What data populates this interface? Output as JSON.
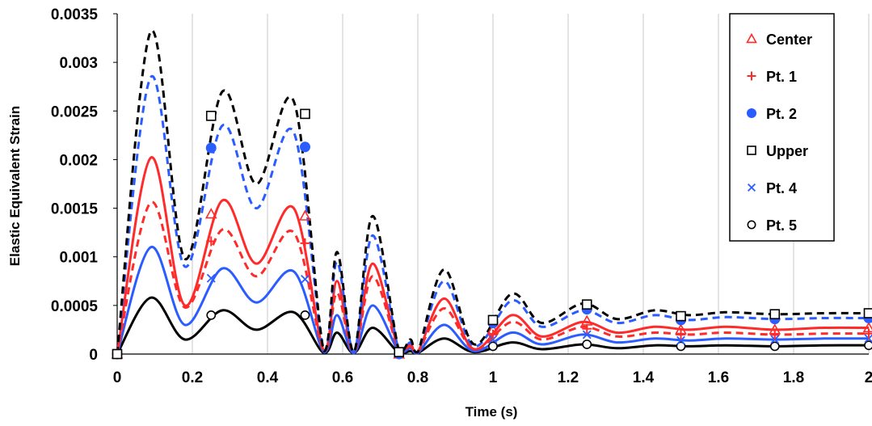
{
  "chart_data": {
    "type": "line",
    "xlabel": "Time (s)",
    "ylabel": "Elastic Equivalent Strain",
    "xlim": [
      0,
      2
    ],
    "ylim": [
      0,
      0.0035
    ],
    "x_ticks": [
      "0",
      "0.2",
      "0.4",
      "0.6",
      "0.8",
      "1",
      "1.2",
      "1.4",
      "1.6",
      "1.8",
      "2"
    ],
    "y_ticks": [
      "0",
      "0.0005",
      "0.001",
      "0.0015",
      "0.002",
      "0.0025",
      "0.003",
      "0.0035"
    ],
    "grid": "vertical",
    "legend_position": "top-right",
    "series": [
      {
        "name": "Center",
        "color": "#ff2a2a",
        "line_style": "solid",
        "marker": "triangle",
        "curve_points": [
          [
            0,
            0
          ],
          [
            0.09,
            0.00202
          ],
          [
            0.18,
            0.0005
          ],
          [
            0.28,
            0.00158
          ],
          [
            0.37,
            0.00093
          ],
          [
            0.47,
            0.0015
          ],
          [
            0.55,
            3e-05
          ],
          [
            0.585,
            0.00075
          ],
          [
            0.63,
            2e-05
          ],
          [
            0.68,
            0.00093
          ],
          [
            0.75,
            3e-05
          ],
          [
            0.78,
            0.0001
          ],
          [
            0.8,
            2e-05
          ],
          [
            0.87,
            0.00057
          ],
          [
            0.95,
            5e-05
          ],
          [
            1.05,
            0.0004
          ],
          [
            1.13,
            0.00018
          ],
          [
            1.24,
            0.00033
          ],
          [
            1.33,
            0.00022
          ],
          [
            1.43,
            0.00028
          ],
          [
            1.52,
            0.00025
          ],
          [
            1.62,
            0.00028
          ],
          [
            1.75,
            0.00025
          ],
          [
            1.88,
            0.00027
          ],
          [
            2,
            0.00027
          ]
        ],
        "marker_points": [
          [
            0,
            0
          ],
          [
            0.25,
            0.00144
          ],
          [
            0.5,
            0.00142
          ],
          [
            0.75,
            0
          ],
          [
            1,
            0.00025
          ],
          [
            1.25,
            0.00034
          ],
          [
            1.5,
            0.00025
          ],
          [
            1.75,
            0.00025
          ],
          [
            2,
            0.00027
          ]
        ]
      },
      {
        "name": "Pt. 1",
        "color": "#ff2a2a",
        "line_style": "dashed",
        "marker": "plus",
        "curve_points": [
          [
            0,
            0
          ],
          [
            0.09,
            0.00156
          ],
          [
            0.18,
            0.00048
          ],
          [
            0.28,
            0.00128
          ],
          [
            0.37,
            0.0008
          ],
          [
            0.47,
            0.00125
          ],
          [
            0.55,
            3e-05
          ],
          [
            0.585,
            0.00063
          ],
          [
            0.63,
            2e-05
          ],
          [
            0.68,
            0.0008
          ],
          [
            0.75,
            3e-05
          ],
          [
            0.78,
            8e-05
          ],
          [
            0.8,
            2e-05
          ],
          [
            0.87,
            0.00047
          ],
          [
            0.95,
            5e-05
          ],
          [
            1.05,
            0.00033
          ],
          [
            1.13,
            0.00015
          ],
          [
            1.24,
            0.00028
          ],
          [
            1.33,
            0.00018
          ],
          [
            1.43,
            0.00022
          ],
          [
            1.52,
            0.0002
          ],
          [
            1.62,
            0.00022
          ],
          [
            1.75,
            0.0002
          ],
          [
            1.88,
            0.00021
          ],
          [
            2,
            0.00021
          ]
        ],
        "marker_points": [
          [
            0,
            0
          ],
          [
            0.25,
            0.00116
          ],
          [
            0.5,
            0.00114
          ],
          [
            0.75,
            0
          ],
          [
            1,
            0.0002
          ],
          [
            1.25,
            0.00026
          ],
          [
            1.5,
            0.0002
          ],
          [
            1.75,
            0.0002
          ],
          [
            2,
            0.00021
          ]
        ]
      },
      {
        "name": "Pt. 2",
        "color": "#2a5cff",
        "line_style": "dashed",
        "marker": "filled-circle",
        "curve_points": [
          [
            0,
            0
          ],
          [
            0.09,
            0.00285
          ],
          [
            0.18,
            0.0009
          ],
          [
            0.28,
            0.00235
          ],
          [
            0.37,
            0.0015
          ],
          [
            0.47,
            0.00228
          ],
          [
            0.55,
            3e-05
          ],
          [
            0.585,
            0.00095
          ],
          [
            0.63,
            2e-05
          ],
          [
            0.68,
            0.00122
          ],
          [
            0.75,
            3e-05
          ],
          [
            0.78,
            0.00012
          ],
          [
            0.8,
            2e-05
          ],
          [
            0.87,
            0.00075
          ],
          [
            0.95,
            8e-05
          ],
          [
            1.05,
            0.00055
          ],
          [
            1.13,
            0.00028
          ],
          [
            1.24,
            0.00045
          ],
          [
            1.33,
            0.00032
          ],
          [
            1.43,
            0.0004
          ],
          [
            1.52,
            0.00035
          ],
          [
            1.62,
            0.00038
          ],
          [
            1.75,
            0.00036
          ],
          [
            1.88,
            0.00037
          ],
          [
            2,
            0.00037
          ]
        ],
        "marker_points": [
          [
            0,
            0
          ],
          [
            0.25,
            0.00212
          ],
          [
            0.5,
            0.00213
          ],
          [
            0.75,
            0
          ],
          [
            1,
            0.00032
          ],
          [
            1.25,
            0.00046
          ],
          [
            1.5,
            0.00035
          ],
          [
            1.75,
            0.00036
          ],
          [
            2,
            0.00037
          ]
        ]
      },
      {
        "name": "Upper",
        "color": "#000000",
        "line_style": "dashed",
        "marker": "open-square",
        "curve_points": [
          [
            0,
            0
          ],
          [
            0.09,
            0.00332
          ],
          [
            0.18,
            0.00098
          ],
          [
            0.28,
            0.0027
          ],
          [
            0.37,
            0.00175
          ],
          [
            0.47,
            0.0026
          ],
          [
            0.55,
            3e-05
          ],
          [
            0.585,
            0.00105
          ],
          [
            0.63,
            2e-05
          ],
          [
            0.68,
            0.00142
          ],
          [
            0.75,
            3e-05
          ],
          [
            0.78,
            0.00015
          ],
          [
            0.8,
            2e-05
          ],
          [
            0.87,
            0.00087
          ],
          [
            0.95,
            0.0001
          ],
          [
            1.05,
            0.00062
          ],
          [
            1.13,
            0.00032
          ],
          [
            1.24,
            0.00052
          ],
          [
            1.33,
            0.00036
          ],
          [
            1.43,
            0.00045
          ],
          [
            1.52,
            0.0004
          ],
          [
            1.62,
            0.00043
          ],
          [
            1.75,
            0.00041
          ],
          [
            1.88,
            0.00042
          ],
          [
            2,
            0.00042
          ]
        ],
        "marker_points": [
          [
            0,
            0
          ],
          [
            0.25,
            0.00245
          ],
          [
            0.5,
            0.00247
          ],
          [
            0.75,
            2e-05
          ],
          [
            1,
            0.00035
          ],
          [
            1.25,
            0.00051
          ],
          [
            1.5,
            0.00039
          ],
          [
            1.75,
            0.00041
          ],
          [
            2,
            0.00042
          ]
        ]
      },
      {
        "name": "Pt. 4",
        "color": "#2a5cff",
        "line_style": "solid",
        "marker": "cross",
        "curve_points": [
          [
            0,
            0
          ],
          [
            0.09,
            0.0011
          ],
          [
            0.18,
            0.0003
          ],
          [
            0.28,
            0.00088
          ],
          [
            0.37,
            0.00053
          ],
          [
            0.47,
            0.00085
          ],
          [
            0.55,
            2e-05
          ],
          [
            0.585,
            0.0004
          ],
          [
            0.63,
            1e-05
          ],
          [
            0.68,
            0.0005
          ],
          [
            0.75,
            2e-05
          ],
          [
            0.78,
            6e-05
          ],
          [
            0.8,
            1e-05
          ],
          [
            0.87,
            0.0003
          ],
          [
            0.95,
            3e-05
          ],
          [
            1.05,
            0.00022
          ],
          [
            1.13,
            0.0001
          ],
          [
            1.24,
            0.0002
          ],
          [
            1.33,
            0.00012
          ],
          [
            1.43,
            0.00016
          ],
          [
            1.52,
            0.00014
          ],
          [
            1.62,
            0.00016
          ],
          [
            1.75,
            0.00015
          ],
          [
            1.88,
            0.00016
          ],
          [
            2,
            0.00016
          ]
        ],
        "marker_points": [
          [
            0,
            0
          ],
          [
            0.25,
            0.00078
          ],
          [
            0.5,
            0.00077
          ],
          [
            0.75,
            0
          ],
          [
            1,
            0.00015
          ],
          [
            1.25,
            0.0002
          ],
          [
            1.5,
            0.00014
          ],
          [
            1.75,
            0.00015
          ],
          [
            2,
            0.00016
          ]
        ]
      },
      {
        "name": "Pt. 5",
        "color": "#000000",
        "line_style": "solid",
        "marker": "open-circle",
        "curve_points": [
          [
            0,
            0
          ],
          [
            0.09,
            0.00058
          ],
          [
            0.18,
            0.00015
          ],
          [
            0.28,
            0.00045
          ],
          [
            0.37,
            0.00025
          ],
          [
            0.47,
            0.00043
          ],
          [
            0.55,
            1e-05
          ],
          [
            0.585,
            0.00022
          ],
          [
            0.63,
            1e-05
          ],
          [
            0.68,
            0.00027
          ],
          [
            0.75,
            1e-05
          ],
          [
            0.78,
            3e-05
          ],
          [
            0.8,
            1e-05
          ],
          [
            0.87,
            0.00016
          ],
          [
            0.95,
            2e-05
          ],
          [
            1.05,
            0.00012
          ],
          [
            1.13,
            5e-05
          ],
          [
            1.24,
            0.0001
          ],
          [
            1.33,
            6e-05
          ],
          [
            1.43,
            9e-05
          ],
          [
            1.52,
            8e-05
          ],
          [
            1.62,
            9e-05
          ],
          [
            1.75,
            8e-05
          ],
          [
            1.88,
            9e-05
          ],
          [
            2,
            9e-05
          ]
        ],
        "marker_points": [
          [
            0,
            0
          ],
          [
            0.25,
            0.0004
          ],
          [
            0.5,
            0.0004
          ],
          [
            0.75,
            0
          ],
          [
            1,
            8e-05
          ],
          [
            1.25,
            0.0001
          ],
          [
            1.5,
            8e-05
          ],
          [
            1.75,
            8e-05
          ],
          [
            2,
            9e-05
          ]
        ]
      }
    ]
  }
}
